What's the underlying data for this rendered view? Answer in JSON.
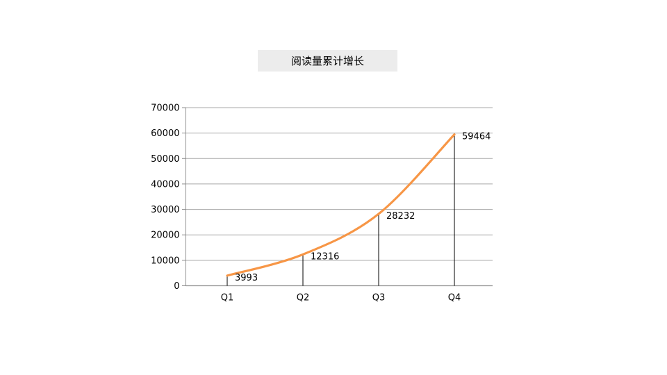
{
  "title_box": {
    "text": "阅读量累计增长",
    "background": "#ECECEC",
    "text_color": "#000000"
  },
  "chart_data": {
    "type": "line",
    "title": "阅读量累计增长",
    "categories": [
      "Q1",
      "Q2",
      "Q3",
      "Q4"
    ],
    "values": [
      3993,
      12316,
      28232,
      59464
    ],
    "data_labels": [
      "3993",
      "12316",
      "28232",
      "59464"
    ],
    "xlabel": "",
    "ylabel": "",
    "ylim": [
      0,
      70000
    ],
    "yticks": [
      0,
      10000,
      20000,
      30000,
      40000,
      50000,
      60000,
      70000
    ],
    "ytick_labels": [
      "0",
      "10000",
      "20000",
      "30000",
      "40000",
      "50000",
      "60000",
      "70000"
    ],
    "grid": true,
    "legend": false,
    "smooth_line": true,
    "drop_lines": true,
    "line_color": "#F79646",
    "gridline_color": "#A8A8A8",
    "axis_color": "#8E8E8E",
    "drop_line_color": "#000000",
    "label_color": "#000000"
  }
}
